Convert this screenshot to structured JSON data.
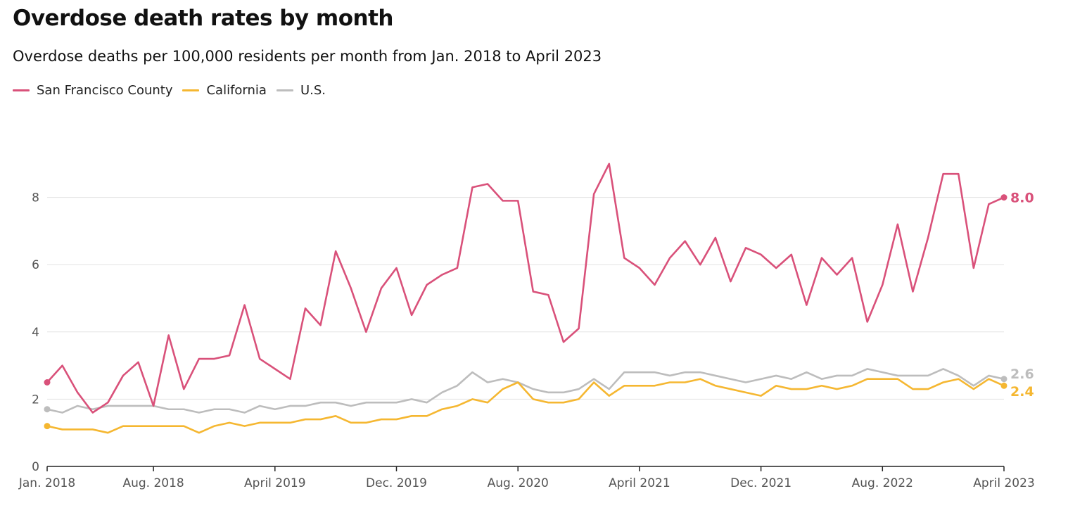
{
  "header": {
    "title": "Overdose death rates by month",
    "subtitle": "Overdose deaths per 100,000 residents per month from Jan. 2018 to April 2023"
  },
  "legend": [
    {
      "label": "San Francisco County",
      "color": "#d9517a"
    },
    {
      "label": "California",
      "color": "#f5b731"
    },
    {
      "label": "U.S.",
      "color": "#bdbdbd"
    }
  ],
  "chart_data": {
    "type": "line",
    "title": "Overdose death rates by month",
    "subtitle": "Overdose deaths per 100,000 residents per month from Jan. 2018 to April 2023",
    "x_start": "Jan. 2018",
    "x_end": "April 2023",
    "x_tick_labels": [
      {
        "label": "Jan. 2018",
        "index": 0
      },
      {
        "label": "Aug. 2018",
        "index": 7
      },
      {
        "label": "April 2019",
        "index": 15
      },
      {
        "label": "Dec. 2019",
        "index": 23
      },
      {
        "label": "Aug. 2020",
        "index": 31
      },
      {
        "label": "April 2021",
        "index": 39
      },
      {
        "label": "Dec. 2021",
        "index": 47
      },
      {
        "label": "Aug. 2022",
        "index": 55
      },
      {
        "label": "April 2023",
        "index": 63
      }
    ],
    "y_ticks": [
      0,
      2,
      4,
      6,
      8
    ],
    "ylim": [
      0,
      9.5
    ],
    "grid": true,
    "legend_position": "top-left",
    "series": [
      {
        "name": "San Francisco County",
        "color": "#d9517a",
        "end_label": "8.0",
        "values": [
          2.5,
          3.0,
          2.2,
          1.6,
          1.9,
          2.7,
          3.1,
          1.8,
          3.9,
          2.3,
          3.2,
          3.2,
          3.3,
          4.8,
          3.2,
          2.9,
          2.6,
          4.7,
          4.2,
          6.4,
          5.3,
          4.0,
          5.3,
          5.9,
          4.5,
          5.4,
          5.7,
          5.9,
          8.3,
          8.4,
          7.9,
          7.9,
          5.2,
          5.1,
          3.7,
          4.1,
          8.1,
          9.0,
          6.2,
          5.9,
          5.4,
          6.2,
          6.7,
          6.0,
          6.8,
          5.5,
          6.5,
          6.3,
          5.9,
          6.3,
          4.8,
          6.2,
          5.7,
          6.2,
          4.3,
          5.4,
          7.2,
          5.2,
          6.8,
          8.7,
          8.7,
          5.9,
          7.8,
          8.0
        ]
      },
      {
        "name": "California",
        "color": "#f5b731",
        "end_label": "2.4",
        "values": [
          1.2,
          1.1,
          1.1,
          1.1,
          1.0,
          1.2,
          1.2,
          1.2,
          1.2,
          1.2,
          1.0,
          1.2,
          1.3,
          1.2,
          1.3,
          1.3,
          1.3,
          1.4,
          1.4,
          1.5,
          1.3,
          1.3,
          1.4,
          1.4,
          1.5,
          1.5,
          1.7,
          1.8,
          2.0,
          1.9,
          2.3,
          2.5,
          2.0,
          1.9,
          1.9,
          2.0,
          2.5,
          2.1,
          2.4,
          2.4,
          2.4,
          2.5,
          2.5,
          2.6,
          2.4,
          2.3,
          2.2,
          2.1,
          2.4,
          2.3,
          2.3,
          2.4,
          2.3,
          2.4,
          2.6,
          2.6,
          2.6,
          2.3,
          2.3,
          2.5,
          2.6,
          2.3,
          2.6,
          2.4
        ]
      },
      {
        "name": "U.S.",
        "color": "#bdbdbd",
        "end_label": "2.6",
        "values": [
          1.7,
          1.6,
          1.8,
          1.7,
          1.8,
          1.8,
          1.8,
          1.8,
          1.7,
          1.7,
          1.6,
          1.7,
          1.7,
          1.6,
          1.8,
          1.7,
          1.8,
          1.8,
          1.9,
          1.9,
          1.8,
          1.9,
          1.9,
          1.9,
          2.0,
          1.9,
          2.2,
          2.4,
          2.8,
          2.5,
          2.6,
          2.5,
          2.3,
          2.2,
          2.2,
          2.3,
          2.6,
          2.3,
          2.8,
          2.8,
          2.8,
          2.7,
          2.8,
          2.8,
          2.7,
          2.6,
          2.5,
          2.6,
          2.7,
          2.6,
          2.8,
          2.6,
          2.7,
          2.7,
          2.9,
          2.8,
          2.7,
          2.7,
          2.7,
          2.9,
          2.7,
          2.4,
          2.7,
          2.6
        ]
      }
    ]
  }
}
